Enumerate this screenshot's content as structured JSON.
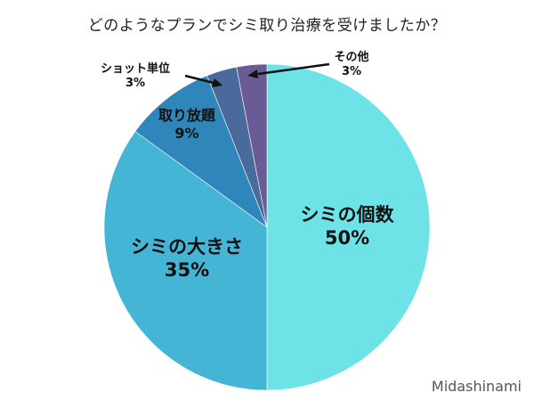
{
  "chart_data": {
    "type": "pie",
    "title": "どのようなプランでシミ取り治療を受けましたか？",
    "categories": [
      "シミの個数",
      "シミの大きさ",
      "取り放題",
      "ショット単位",
      "その他"
    ],
    "values": [
      50,
      35,
      9,
      3,
      3
    ],
    "unit": "%",
    "colors": [
      "#6de3e8",
      "#45b5d6",
      "#2e86bb",
      "#4a6a9c",
      "#6a5a96"
    ],
    "labels": [
      {
        "name": "シミの個数",
        "pct": "50%"
      },
      {
        "name": "シミの大きさ",
        "pct": "35%"
      },
      {
        "name": "取り放題",
        "pct": "9%"
      },
      {
        "name": "ショット単位",
        "pct": "3%"
      },
      {
        "name": "その他",
        "pct": "3%"
      }
    ],
    "start_angle": "top, clockwise",
    "legend": "none (inline labels)"
  },
  "watermark": "Midashinami"
}
